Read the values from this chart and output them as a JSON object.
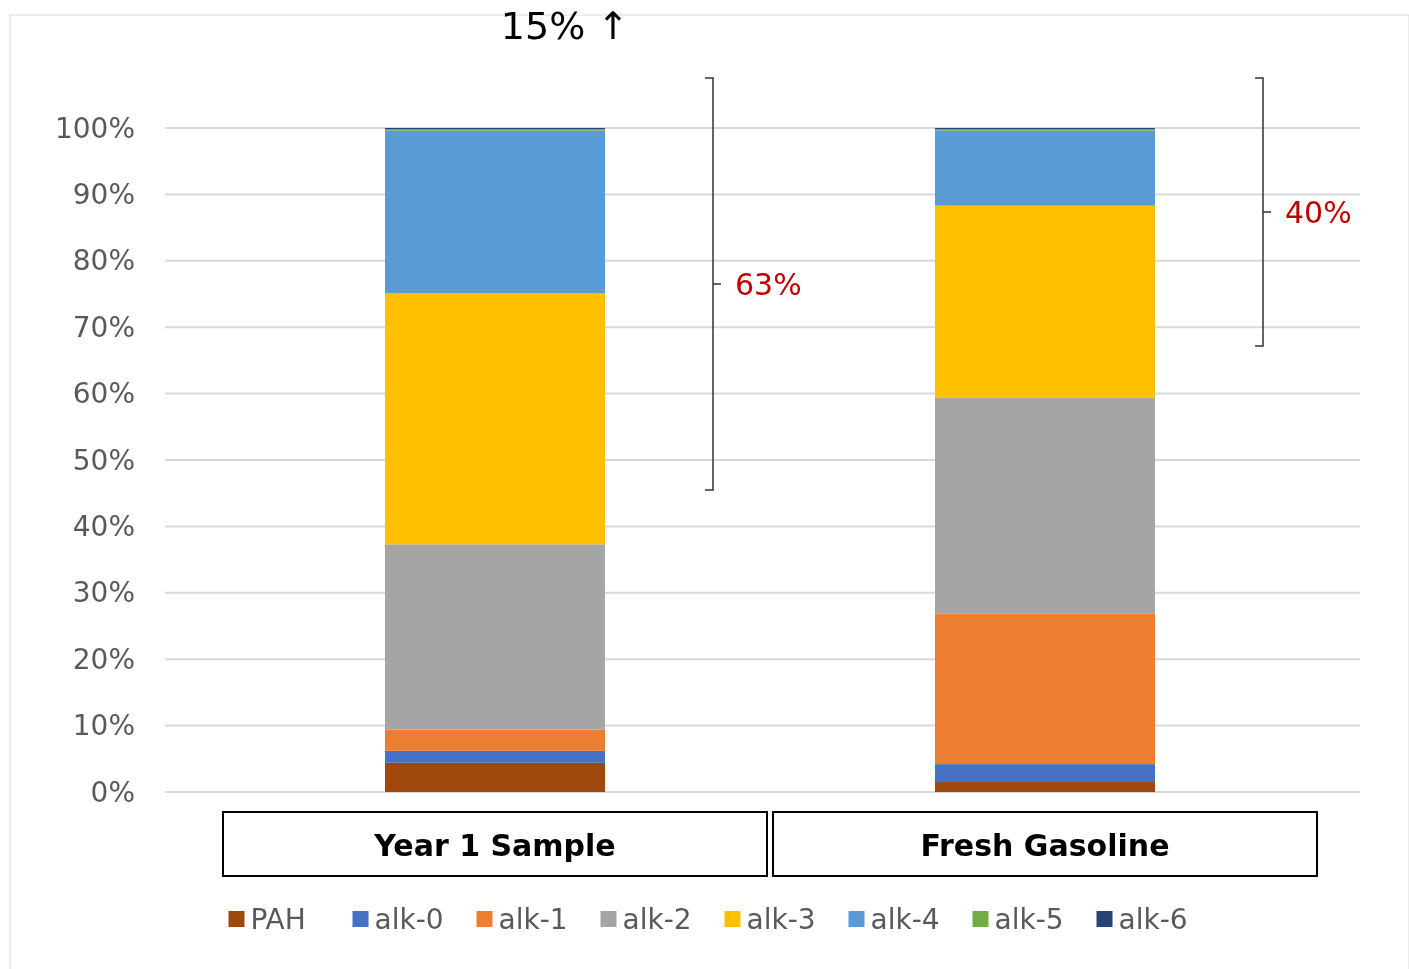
{
  "chart_data": {
    "type": "bar",
    "stacked": true,
    "categories": [
      "Year 1 Sample",
      "Fresh Gasoline"
    ],
    "series": [
      {
        "name": "PAH",
        "color": "#9e480e",
        "values": [
          4.4,
          1.5
        ]
      },
      {
        "name": "alk-0",
        "color": "#4472c4",
        "values": [
          1.8,
          2.7
        ]
      },
      {
        "name": "alk-1",
        "color": "#ed7d31",
        "values": [
          3.2,
          22.7
        ]
      },
      {
        "name": "alk-2",
        "color": "#a5a5a5",
        "values": [
          27.9,
          32.5
        ]
      },
      {
        "name": "alk-3",
        "color": "#ffc000",
        "values": [
          37.8,
          28.9
        ]
      },
      {
        "name": "alk-4",
        "color": "#5b9bd5",
        "values": [
          24.5,
          11.3
        ]
      },
      {
        "name": "alk-5",
        "color": "#70ad47",
        "values": [
          0.2,
          0.2
        ]
      },
      {
        "name": "alk-6",
        "color": "#264478",
        "values": [
          0.2,
          0.2
        ]
      }
    ],
    "ylim": [
      0,
      100
    ],
    "yticks": [
      {
        "value": 0,
        "label": "0%"
      },
      {
        "value": 10,
        "label": "10%"
      },
      {
        "value": 20,
        "label": "20%"
      },
      {
        "value": 30,
        "label": "30%"
      },
      {
        "value": 40,
        "label": "40%"
      },
      {
        "value": 50,
        "label": "50%"
      },
      {
        "value": 60,
        "label": "60%"
      },
      {
        "value": 70,
        "label": "70%"
      },
      {
        "value": 80,
        "label": "80%"
      },
      {
        "value": 90,
        "label": "90%"
      },
      {
        "value": 100,
        "label": "100%"
      }
    ],
    "grid": "y",
    "legend": "bottom",
    "annotations": [
      "15% ↑",
      "63%",
      "40%"
    ]
  }
}
